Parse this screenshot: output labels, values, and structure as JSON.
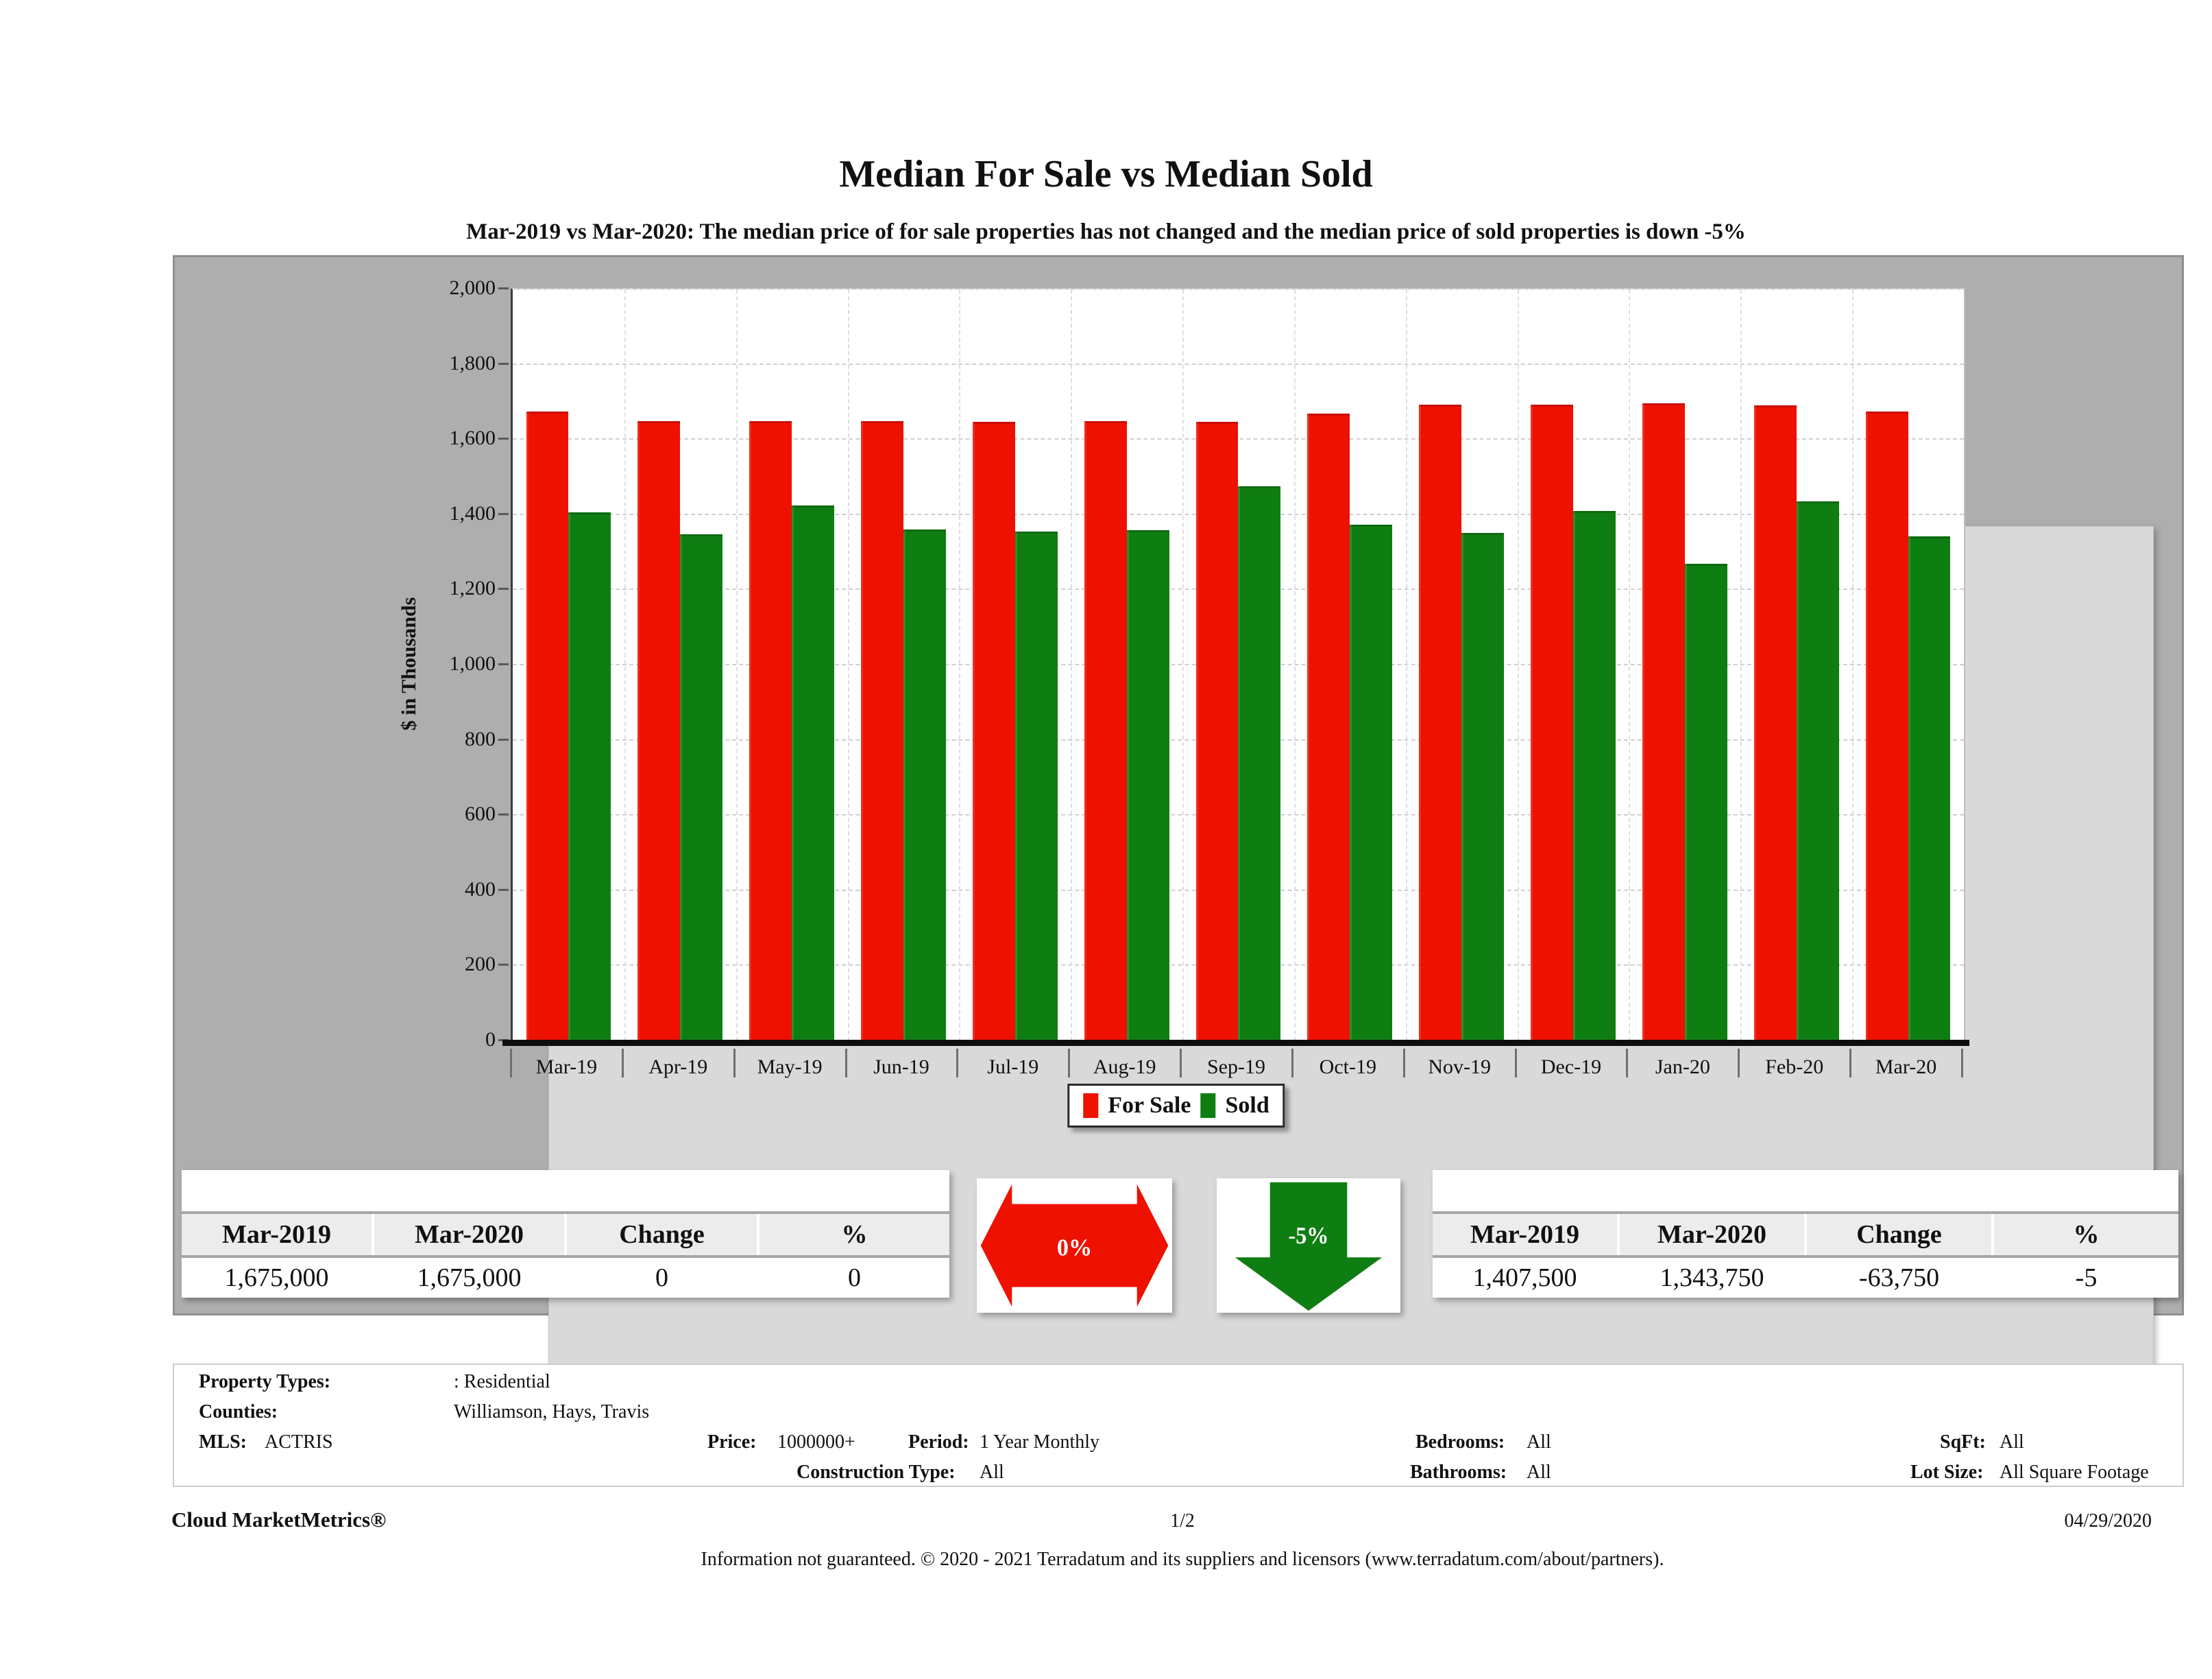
{
  "page": {
    "title": "Median For Sale vs Median Sold",
    "subtitle": "Mar-2019 vs Mar-2020: The median price of for sale properties has not changed and the median price of sold properties is down -5%"
  },
  "chart_data": {
    "type": "bar",
    "title": "Median For Sale vs Median Sold",
    "ylabel": "$ in Thousands",
    "xlabel": "",
    "ylim": [
      0,
      2000
    ],
    "ytick_step": 200,
    "yticks": [
      "2,000",
      "1,800",
      "1,600",
      "1,400",
      "1,200",
      "1,000",
      "800",
      "600",
      "400",
      "200",
      "0"
    ],
    "grid": true,
    "legend_position": "bottom-center",
    "categories": [
      "Mar-19",
      "Apr-19",
      "May-19",
      "Jun-19",
      "Jul-19",
      "Aug-19",
      "Sep-19",
      "Oct-19",
      "Nov-19",
      "Dec-19",
      "Jan-20",
      "Feb-20",
      "Mar-20"
    ],
    "series": [
      {
        "name": "For Sale",
        "color": "#ee1100",
        "values": [
          1675,
          1650,
          1650,
          1650,
          1648,
          1650,
          1648,
          1670,
          1694,
          1694,
          1698,
          1692,
          1675
        ]
      },
      {
        "name": "Sold",
        "color": "#0f7e12",
        "values": [
          1407.5,
          1348,
          1425,
          1361,
          1355,
          1359,
          1477,
          1375,
          1353,
          1410,
          1271,
          1437,
          1343.75
        ]
      }
    ]
  },
  "legend": {
    "for_sale": "For Sale",
    "sold": "Sold"
  },
  "for_sale_summary": {
    "headers": [
      "Mar-2019",
      "Mar-2020",
      "Change",
      "%"
    ],
    "values": [
      "1,675,000",
      "1,675,000",
      "0",
      "0"
    ],
    "arrow": {
      "label": "0%",
      "direction": "flat",
      "color": "#ee1100"
    }
  },
  "sold_summary": {
    "headers": [
      "Mar-2019",
      "Mar-2020",
      "Change",
      "%"
    ],
    "values": [
      "1,407,500",
      "1,343,750",
      "-63,750",
      "-5"
    ],
    "arrow": {
      "label": "-5%",
      "direction": "down",
      "color": "#0f7e12"
    }
  },
  "filters": {
    "property_types_label": "Property Types:",
    "property_types": ": Residential",
    "counties_label": "Counties:",
    "counties": "Williamson, Hays, Travis",
    "mls_label": "MLS:",
    "mls": "ACTRIS",
    "price_label": "Price:",
    "price": "1000000+",
    "period_label": "Period:",
    "period": "1 Year Monthly",
    "construction_label": "Construction Type:",
    "construction": "All",
    "bedrooms_label": "Bedrooms:",
    "bedrooms": "All",
    "bathrooms_label": "Bathrooms:",
    "bathrooms": "All",
    "sqft_label": "SqFt:",
    "sqft": "All",
    "lot_label": "Lot Size:",
    "lot": "All Square Footage"
  },
  "footer": {
    "brand": "Cloud MarketMetrics®",
    "page": "1/2",
    "date": "04/29/2020",
    "disclaimer": "Information not guaranteed. © 2020 - 2021 Terradatum and its suppliers and licensors (www.terradatum.com/about/partners)."
  }
}
